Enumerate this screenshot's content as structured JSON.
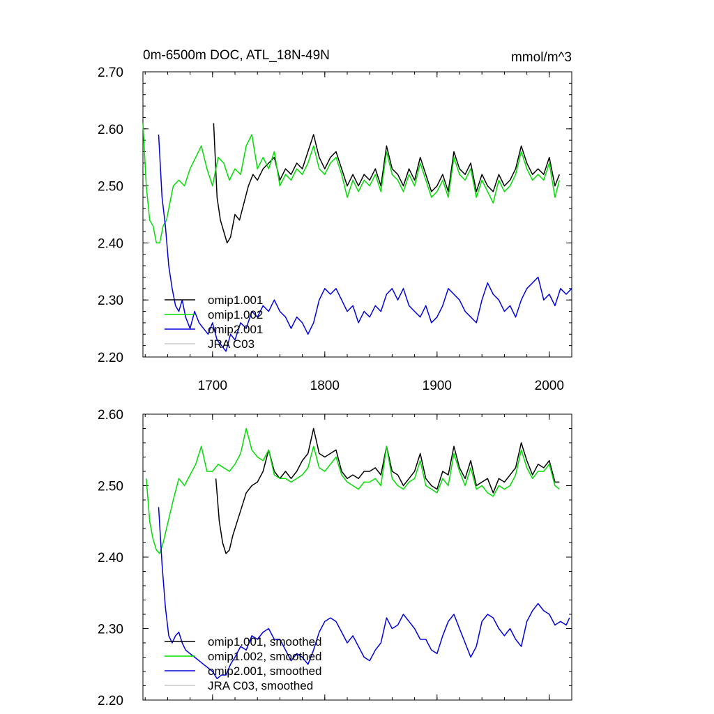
{
  "chart_data": [
    {
      "type": "line",
      "title": "0m-6500m DOC, ATL_18N-49N",
      "units": "mmol/m^3",
      "xlim": [
        1638,
        2020
      ],
      "ylim": [
        2.2,
        2.7
      ],
      "x_ticks": [
        1700,
        1800,
        1900,
        2000
      ],
      "x_tick_labels": [
        "1700",
        "1800",
        "1900",
        "2000"
      ],
      "y_ticks": [
        2.2,
        2.3,
        2.4,
        2.5,
        2.6,
        2.7
      ],
      "y_tick_labels": [
        "2.20",
        "2.30",
        "2.40",
        "2.50",
        "2.60",
        "2.70"
      ],
      "legend_position": "bottom-left",
      "series": [
        {
          "name": "omip1.001",
          "color": "#000000",
          "x": [
            1701,
            1704,
            1707,
            1710,
            1713,
            1716,
            1720,
            1724,
            1728,
            1732,
            1736,
            1740,
            1745,
            1750,
            1755,
            1760,
            1765,
            1770,
            1775,
            1780,
            1785,
            1790,
            1795,
            1800,
            1805,
            1810,
            1815,
            1820,
            1825,
            1830,
            1835,
            1840,
            1845,
            1850,
            1855,
            1860,
            1865,
            1870,
            1875,
            1880,
            1885,
            1890,
            1895,
            1900,
            1905,
            1910,
            1915,
            1920,
            1925,
            1930,
            1935,
            1940,
            1945,
            1950,
            1955,
            1960,
            1965,
            1970,
            1975,
            1980,
            1985,
            1990,
            1995,
            2000,
            2005,
            2009
          ],
          "values": [
            2.61,
            2.48,
            2.44,
            2.42,
            2.4,
            2.41,
            2.45,
            2.44,
            2.47,
            2.5,
            2.52,
            2.51,
            2.53,
            2.54,
            2.55,
            2.51,
            2.53,
            2.52,
            2.54,
            2.53,
            2.56,
            2.59,
            2.55,
            2.53,
            2.55,
            2.56,
            2.53,
            2.5,
            2.52,
            2.5,
            2.52,
            2.51,
            2.53,
            2.5,
            2.57,
            2.53,
            2.52,
            2.5,
            2.53,
            2.51,
            2.55,
            2.52,
            2.49,
            2.5,
            2.52,
            2.49,
            2.56,
            2.53,
            2.52,
            2.54,
            2.49,
            2.52,
            2.5,
            2.49,
            2.52,
            2.5,
            2.51,
            2.53,
            2.57,
            2.54,
            2.52,
            2.53,
            2.52,
            2.55,
            2.5,
            2.52
          ]
        },
        {
          "name": "omip1.002",
          "color": "#00dd00",
          "x": [
            1638,
            1641,
            1644,
            1647,
            1650,
            1653,
            1656,
            1659,
            1662,
            1665,
            1670,
            1675,
            1680,
            1685,
            1690,
            1695,
            1700,
            1705,
            1710,
            1715,
            1720,
            1725,
            1730,
            1735,
            1740,
            1745,
            1750,
            1755,
            1760,
            1765,
            1770,
            1775,
            1780,
            1785,
            1790,
            1795,
            1800,
            1805,
            1810,
            1815,
            1820,
            1825,
            1830,
            1835,
            1840,
            1845,
            1850,
            1855,
            1860,
            1865,
            1870,
            1875,
            1880,
            1885,
            1890,
            1895,
            1900,
            1905,
            1910,
            1915,
            1920,
            1925,
            1930,
            1935,
            1940,
            1945,
            1950,
            1955,
            1960,
            1965,
            1970,
            1975,
            1980,
            1985,
            1990,
            1995,
            2000,
            2005,
            2009
          ],
          "values": [
            2.61,
            2.5,
            2.44,
            2.43,
            2.4,
            2.4,
            2.43,
            2.44,
            2.47,
            2.5,
            2.51,
            2.5,
            2.53,
            2.55,
            2.57,
            2.53,
            2.5,
            2.55,
            2.54,
            2.51,
            2.53,
            2.52,
            2.57,
            2.59,
            2.53,
            2.55,
            2.53,
            2.56,
            2.5,
            2.52,
            2.51,
            2.53,
            2.52,
            2.54,
            2.57,
            2.53,
            2.52,
            2.54,
            2.55,
            2.52,
            2.48,
            2.51,
            2.49,
            2.51,
            2.5,
            2.52,
            2.49,
            2.56,
            2.52,
            2.51,
            2.49,
            2.52,
            2.5,
            2.54,
            2.51,
            2.48,
            2.49,
            2.51,
            2.48,
            2.55,
            2.52,
            2.51,
            2.53,
            2.48,
            2.51,
            2.49,
            2.47,
            2.51,
            2.49,
            2.5,
            2.52,
            2.56,
            2.53,
            2.51,
            2.52,
            2.51,
            2.54,
            2.48,
            2.51
          ]
        },
        {
          "name": "omip2.001",
          "color": "#0000dd",
          "x": [
            1652,
            1655,
            1658,
            1661,
            1664,
            1667,
            1670,
            1673,
            1676,
            1680,
            1684,
            1688,
            1692,
            1696,
            1700,
            1704,
            1708,
            1712,
            1716,
            1720,
            1725,
            1730,
            1735,
            1740,
            1745,
            1750,
            1755,
            1760,
            1765,
            1770,
            1775,
            1780,
            1785,
            1790,
            1795,
            1800,
            1805,
            1810,
            1815,
            1820,
            1825,
            1830,
            1835,
            1840,
            1845,
            1850,
            1855,
            1860,
            1865,
            1870,
            1875,
            1880,
            1885,
            1890,
            1895,
            1900,
            1905,
            1910,
            1915,
            1920,
            1925,
            1930,
            1935,
            1940,
            1945,
            1950,
            1955,
            1960,
            1965,
            1970,
            1975,
            1980,
            1985,
            1990,
            1995,
            2000,
            2005,
            2010,
            2015,
            2020
          ],
          "values": [
            2.59,
            2.48,
            2.43,
            2.36,
            2.32,
            2.29,
            2.28,
            2.3,
            2.27,
            2.25,
            2.28,
            2.26,
            2.25,
            2.24,
            2.26,
            2.23,
            2.22,
            2.21,
            2.24,
            2.23,
            2.26,
            2.25,
            2.28,
            2.27,
            2.29,
            2.28,
            2.3,
            2.28,
            2.27,
            2.25,
            2.27,
            2.26,
            2.24,
            2.26,
            2.3,
            2.32,
            2.31,
            2.32,
            2.3,
            2.28,
            2.29,
            2.26,
            2.28,
            2.27,
            2.29,
            2.28,
            2.31,
            2.32,
            2.3,
            2.32,
            2.29,
            2.28,
            2.27,
            2.29,
            2.26,
            2.27,
            2.29,
            2.32,
            2.31,
            2.3,
            2.28,
            2.27,
            2.26,
            2.3,
            2.33,
            2.31,
            2.3,
            2.28,
            2.29,
            2.27,
            2.3,
            2.32,
            2.33,
            2.34,
            2.3,
            2.31,
            2.29,
            2.32,
            2.31,
            2.32
          ]
        },
        {
          "name": "JRA C03",
          "color": "#c8c8c8",
          "x": [],
          "values": []
        }
      ]
    },
    {
      "type": "line",
      "title": "",
      "xlim": [
        1638,
        2020
      ],
      "ylim": [
        2.2,
        2.6
      ],
      "x_ticks": [
        1700,
        1800,
        1900,
        2000
      ],
      "x_tick_labels": [],
      "y_ticks": [
        2.2,
        2.3,
        2.4,
        2.5,
        2.6
      ],
      "y_tick_labels": [
        "2.20",
        "2.30",
        "2.40",
        "2.50",
        "2.60"
      ],
      "legend_position": "bottom-left",
      "series": [
        {
          "name": "omip1.001, smoothed",
          "color": "#000000",
          "x": [
            1703,
            1706,
            1709,
            1712,
            1715,
            1718,
            1722,
            1726,
            1730,
            1735,
            1740,
            1745,
            1750,
            1755,
            1760,
            1765,
            1770,
            1775,
            1780,
            1785,
            1790,
            1795,
            1800,
            1805,
            1810,
            1815,
            1820,
            1825,
            1830,
            1835,
            1840,
            1845,
            1850,
            1855,
            1860,
            1865,
            1870,
            1875,
            1880,
            1885,
            1890,
            1895,
            1900,
            1905,
            1910,
            1915,
            1920,
            1925,
            1930,
            1935,
            1940,
            1945,
            1950,
            1955,
            1960,
            1965,
            1970,
            1975,
            1980,
            1985,
            1990,
            1995,
            2000,
            2005,
            2009
          ],
          "values": [
            2.51,
            2.45,
            2.42,
            2.405,
            2.41,
            2.43,
            2.45,
            2.47,
            2.49,
            2.5,
            2.505,
            2.52,
            2.55,
            2.52,
            2.51,
            2.52,
            2.51,
            2.52,
            2.535,
            2.545,
            2.58,
            2.545,
            2.54,
            2.545,
            2.55,
            2.52,
            2.51,
            2.515,
            2.51,
            2.52,
            2.52,
            2.525,
            2.515,
            2.555,
            2.52,
            2.515,
            2.5,
            2.51,
            2.52,
            2.545,
            2.51,
            2.5,
            2.495,
            2.52,
            2.515,
            2.555,
            2.525,
            2.51,
            2.535,
            2.5,
            2.505,
            2.51,
            2.49,
            2.51,
            2.505,
            2.515,
            2.525,
            2.56,
            2.535,
            2.515,
            2.53,
            2.525,
            2.535,
            2.505,
            2.505
          ]
        },
        {
          "name": "omip1.002, smoothed",
          "color": "#00dd00",
          "x": [
            1641,
            1644,
            1647,
            1650,
            1653,
            1656,
            1659,
            1662,
            1665,
            1670,
            1675,
            1680,
            1685,
            1690,
            1695,
            1700,
            1705,
            1710,
            1715,
            1720,
            1725,
            1730,
            1735,
            1740,
            1745,
            1750,
            1755,
            1760,
            1765,
            1770,
            1775,
            1780,
            1785,
            1790,
            1795,
            1800,
            1805,
            1810,
            1815,
            1820,
            1825,
            1830,
            1835,
            1840,
            1845,
            1850,
            1855,
            1860,
            1865,
            1870,
            1875,
            1880,
            1885,
            1890,
            1895,
            1900,
            1905,
            1910,
            1915,
            1920,
            1925,
            1930,
            1935,
            1940,
            1945,
            1950,
            1955,
            1960,
            1965,
            1970,
            1975,
            1980,
            1985,
            1990,
            1995,
            2000,
            2005,
            2009
          ],
          "values": [
            2.51,
            2.45,
            2.425,
            2.41,
            2.405,
            2.42,
            2.44,
            2.46,
            2.48,
            2.51,
            2.5,
            2.515,
            2.53,
            2.555,
            2.52,
            2.52,
            2.53,
            2.525,
            2.52,
            2.53,
            2.545,
            2.58,
            2.55,
            2.54,
            2.535,
            2.55,
            2.515,
            2.51,
            2.51,
            2.505,
            2.51,
            2.515,
            2.525,
            2.555,
            2.525,
            2.52,
            2.53,
            2.54,
            2.515,
            2.505,
            2.5,
            2.495,
            2.505,
            2.505,
            2.51,
            2.5,
            2.555,
            2.51,
            2.5,
            2.495,
            2.505,
            2.51,
            2.535,
            2.5,
            2.495,
            2.49,
            2.51,
            2.5,
            2.545,
            2.52,
            2.5,
            2.525,
            2.495,
            2.5,
            2.49,
            2.485,
            2.5,
            2.495,
            2.5,
            2.515,
            2.55,
            2.525,
            2.51,
            2.52,
            2.52,
            2.53,
            2.5,
            2.495
          ]
        },
        {
          "name": "omip2.001, smoothed",
          "color": "#0000dd",
          "x": [
            1652,
            1655,
            1658,
            1661,
            1664,
            1667,
            1670,
            1673,
            1676,
            1680,
            1684,
            1688,
            1692,
            1696,
            1700,
            1704,
            1708,
            1712,
            1716,
            1720,
            1725,
            1730,
            1735,
            1740,
            1745,
            1750,
            1755,
            1760,
            1765,
            1770,
            1775,
            1780,
            1785,
            1790,
            1795,
            1800,
            1805,
            1810,
            1815,
            1820,
            1825,
            1830,
            1835,
            1840,
            1845,
            1850,
            1855,
            1860,
            1865,
            1870,
            1875,
            1880,
            1885,
            1890,
            1895,
            1900,
            1905,
            1910,
            1915,
            1920,
            1925,
            1930,
            1935,
            1940,
            1945,
            1950,
            1955,
            1960,
            1965,
            1970,
            1975,
            1980,
            1985,
            1990,
            1995,
            2000,
            2005,
            2010,
            2015,
            2018
          ],
          "values": [
            2.47,
            2.39,
            2.33,
            2.29,
            2.28,
            2.29,
            2.295,
            2.28,
            2.27,
            2.265,
            2.26,
            2.255,
            2.25,
            2.245,
            2.24,
            2.23,
            2.235,
            2.235,
            2.25,
            2.26,
            2.275,
            2.27,
            2.29,
            2.285,
            2.295,
            2.3,
            2.285,
            2.285,
            2.27,
            2.255,
            2.265,
            2.26,
            2.25,
            2.27,
            2.295,
            2.31,
            2.315,
            2.31,
            2.295,
            2.28,
            2.29,
            2.275,
            2.26,
            2.255,
            2.27,
            2.28,
            2.315,
            2.3,
            2.305,
            2.32,
            2.31,
            2.3,
            2.285,
            2.285,
            2.27,
            2.265,
            2.29,
            2.31,
            2.32,
            2.3,
            2.28,
            2.26,
            2.275,
            2.31,
            2.32,
            2.315,
            2.3,
            2.29,
            2.3,
            2.285,
            2.275,
            2.31,
            2.325,
            2.335,
            2.325,
            2.32,
            2.305,
            2.31,
            2.305,
            2.315
          ]
        },
        {
          "name": "JRA C03, smoothed",
          "color": "#c8c8c8",
          "x": [],
          "values": []
        }
      ]
    }
  ]
}
